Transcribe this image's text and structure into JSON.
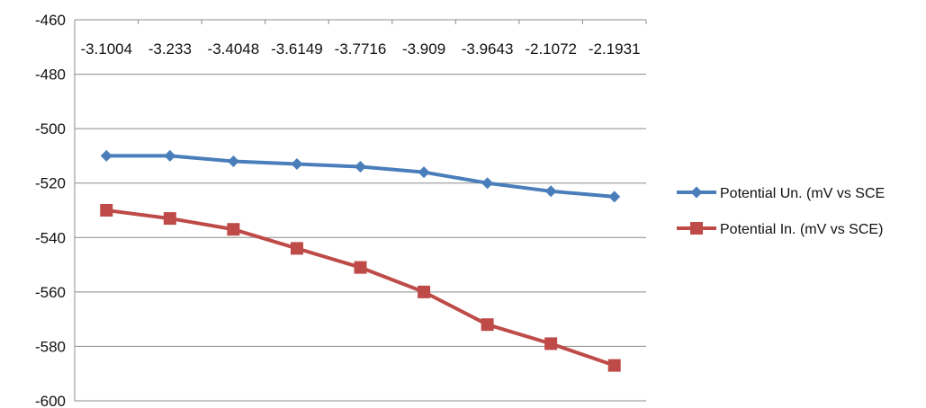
{
  "chart_data": {
    "type": "line",
    "title": "",
    "xlabel": "",
    "ylabel": "",
    "categories": [
      "-3.1004",
      "-3.233",
      "-3.4048",
      "-3.6149",
      "-3.7716",
      "-3.909",
      "-3.9643",
      "-2.1072",
      "-2.1931"
    ],
    "ylim": [
      -600,
      -460
    ],
    "ystep": 20,
    "x_axis_position": "top",
    "grid": true,
    "legend_position": "right",
    "series": [
      {
        "name": "Potential Un. (mV vs SCE",
        "values": [
          -510,
          -510,
          -512,
          -513,
          -514,
          -516,
          -520,
          -523,
          -525
        ],
        "color": "#4a7ebb",
        "marker": "diamond"
      },
      {
        "name": "Potential In. (mV vs SCE)",
        "values": [
          -530,
          -533,
          -537,
          -544,
          -551,
          -560,
          -572,
          -579,
          -587
        ],
        "color": "#be4b48",
        "marker": "square"
      }
    ]
  }
}
